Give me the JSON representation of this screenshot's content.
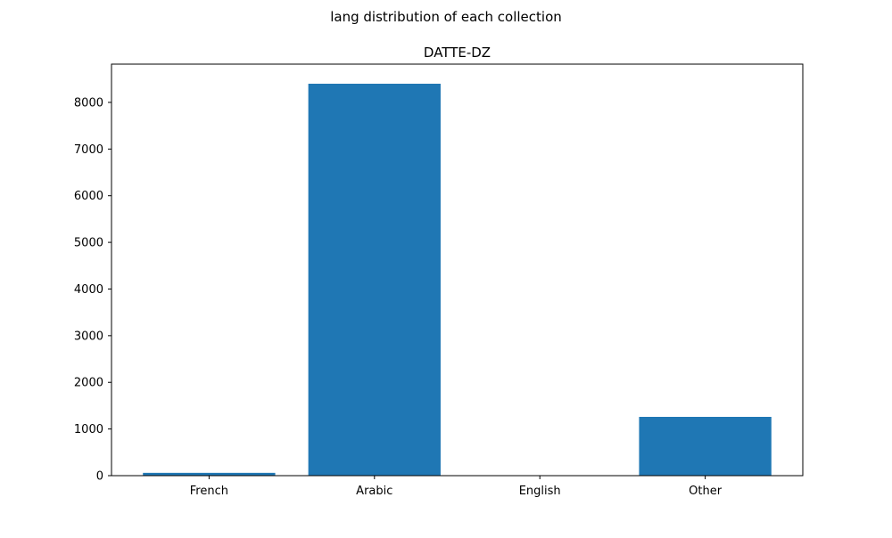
{
  "figure": {
    "suptitle": "lang distribution of each collection"
  },
  "chart_data": {
    "type": "bar",
    "title": "DATTE-DZ",
    "categories": [
      "French",
      "Arabic",
      "English",
      "Other"
    ],
    "values": [
      60,
      8400,
      0,
      1260
    ],
    "xlabel": "",
    "ylabel": "",
    "ylim": [
      0,
      8820
    ],
    "yticks": [
      0,
      1000,
      2000,
      3000,
      4000,
      5000,
      6000,
      7000,
      8000
    ],
    "grid": false,
    "legend": "none",
    "bar_color": "#1f77b4"
  }
}
